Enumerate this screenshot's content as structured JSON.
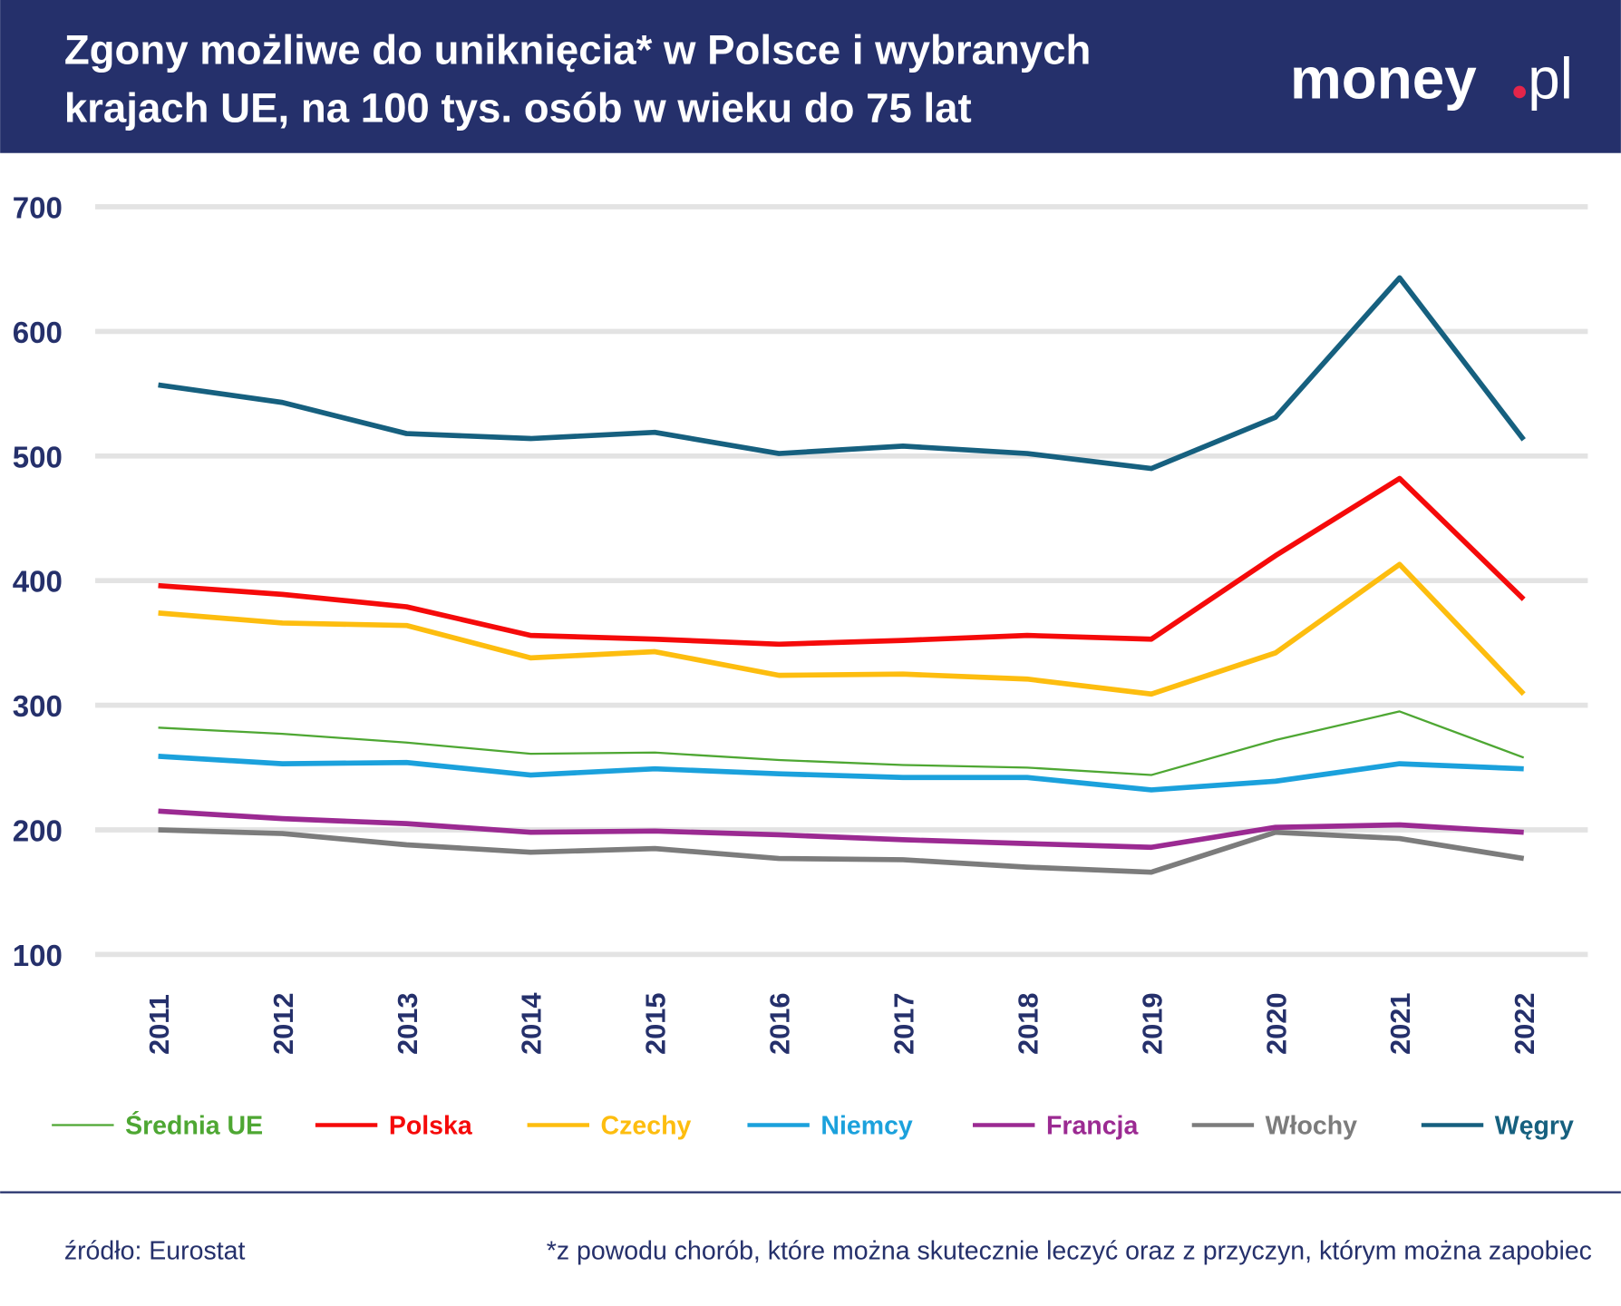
{
  "header": {
    "title_line1": "Zgony możliwe do uniknięcia* w Polsce i wybranych",
    "title_line2": "krajach UE, na 100 tys. osób w wieku do 75 lat",
    "logo_text": "money.pl",
    "background": "#25306b"
  },
  "footer": {
    "source": "źródło: Eurostat",
    "note": "*z powodu chorób, które można skutecznie leczyć oraz z przyczyn, którym można zapobiec"
  },
  "chart_data": {
    "type": "line",
    "title": "Zgony możliwe do uniknięcia* w Polsce i wybranych krajach UE, na 100 tys. osób w wieku do 75 lat",
    "xlabel": "",
    "ylabel": "",
    "ylim": [
      100,
      700
    ],
    "yticks": [
      700,
      600,
      500,
      400,
      300,
      200,
      100
    ],
    "grid": true,
    "legend_placement": "bottom",
    "x": [
      "2011",
      "2012",
      "2013",
      "2014",
      "2015",
      "2016",
      "2017",
      "2018",
      "2019",
      "2020",
      "2021",
      "2022"
    ],
    "series": [
      {
        "name": "Średnia UE",
        "color": "#4ea733",
        "width": 2,
        "values": [
          282,
          277,
          270,
          261,
          262,
          256,
          252,
          250,
          244,
          272,
          295,
          258
        ]
      },
      {
        "name": "Polska",
        "color": "#f50a0a",
        "width": 5,
        "values": [
          396,
          389,
          379,
          356,
          353,
          349,
          352,
          356,
          353,
          420,
          482,
          385
        ]
      },
      {
        "name": "Czechy",
        "color": "#fdbd0f",
        "width": 5,
        "values": [
          374,
          366,
          364,
          338,
          343,
          324,
          325,
          321,
          309,
          342,
          413,
          309
        ]
      },
      {
        "name": "Niemcy",
        "color": "#1ba1dc",
        "width": 5,
        "values": [
          259,
          253,
          254,
          244,
          249,
          245,
          242,
          242,
          232,
          239,
          253,
          249
        ]
      },
      {
        "name": "Francja",
        "color": "#9b2a92",
        "width": 5,
        "values": [
          215,
          209,
          205,
          198,
          199,
          196,
          192,
          189,
          186,
          202,
          204,
          198
        ]
      },
      {
        "name": "Włochy",
        "color": "#7c7c7c",
        "width": 5,
        "values": [
          200,
          197,
          188,
          182,
          185,
          177,
          176,
          170,
          166,
          198,
          193,
          177
        ]
      },
      {
        "name": "Węgry",
        "color": "#16607f",
        "width": 5,
        "values": [
          557,
          543,
          518,
          514,
          519,
          502,
          508,
          502,
          490,
          531,
          643,
          513
        ]
      }
    ]
  }
}
